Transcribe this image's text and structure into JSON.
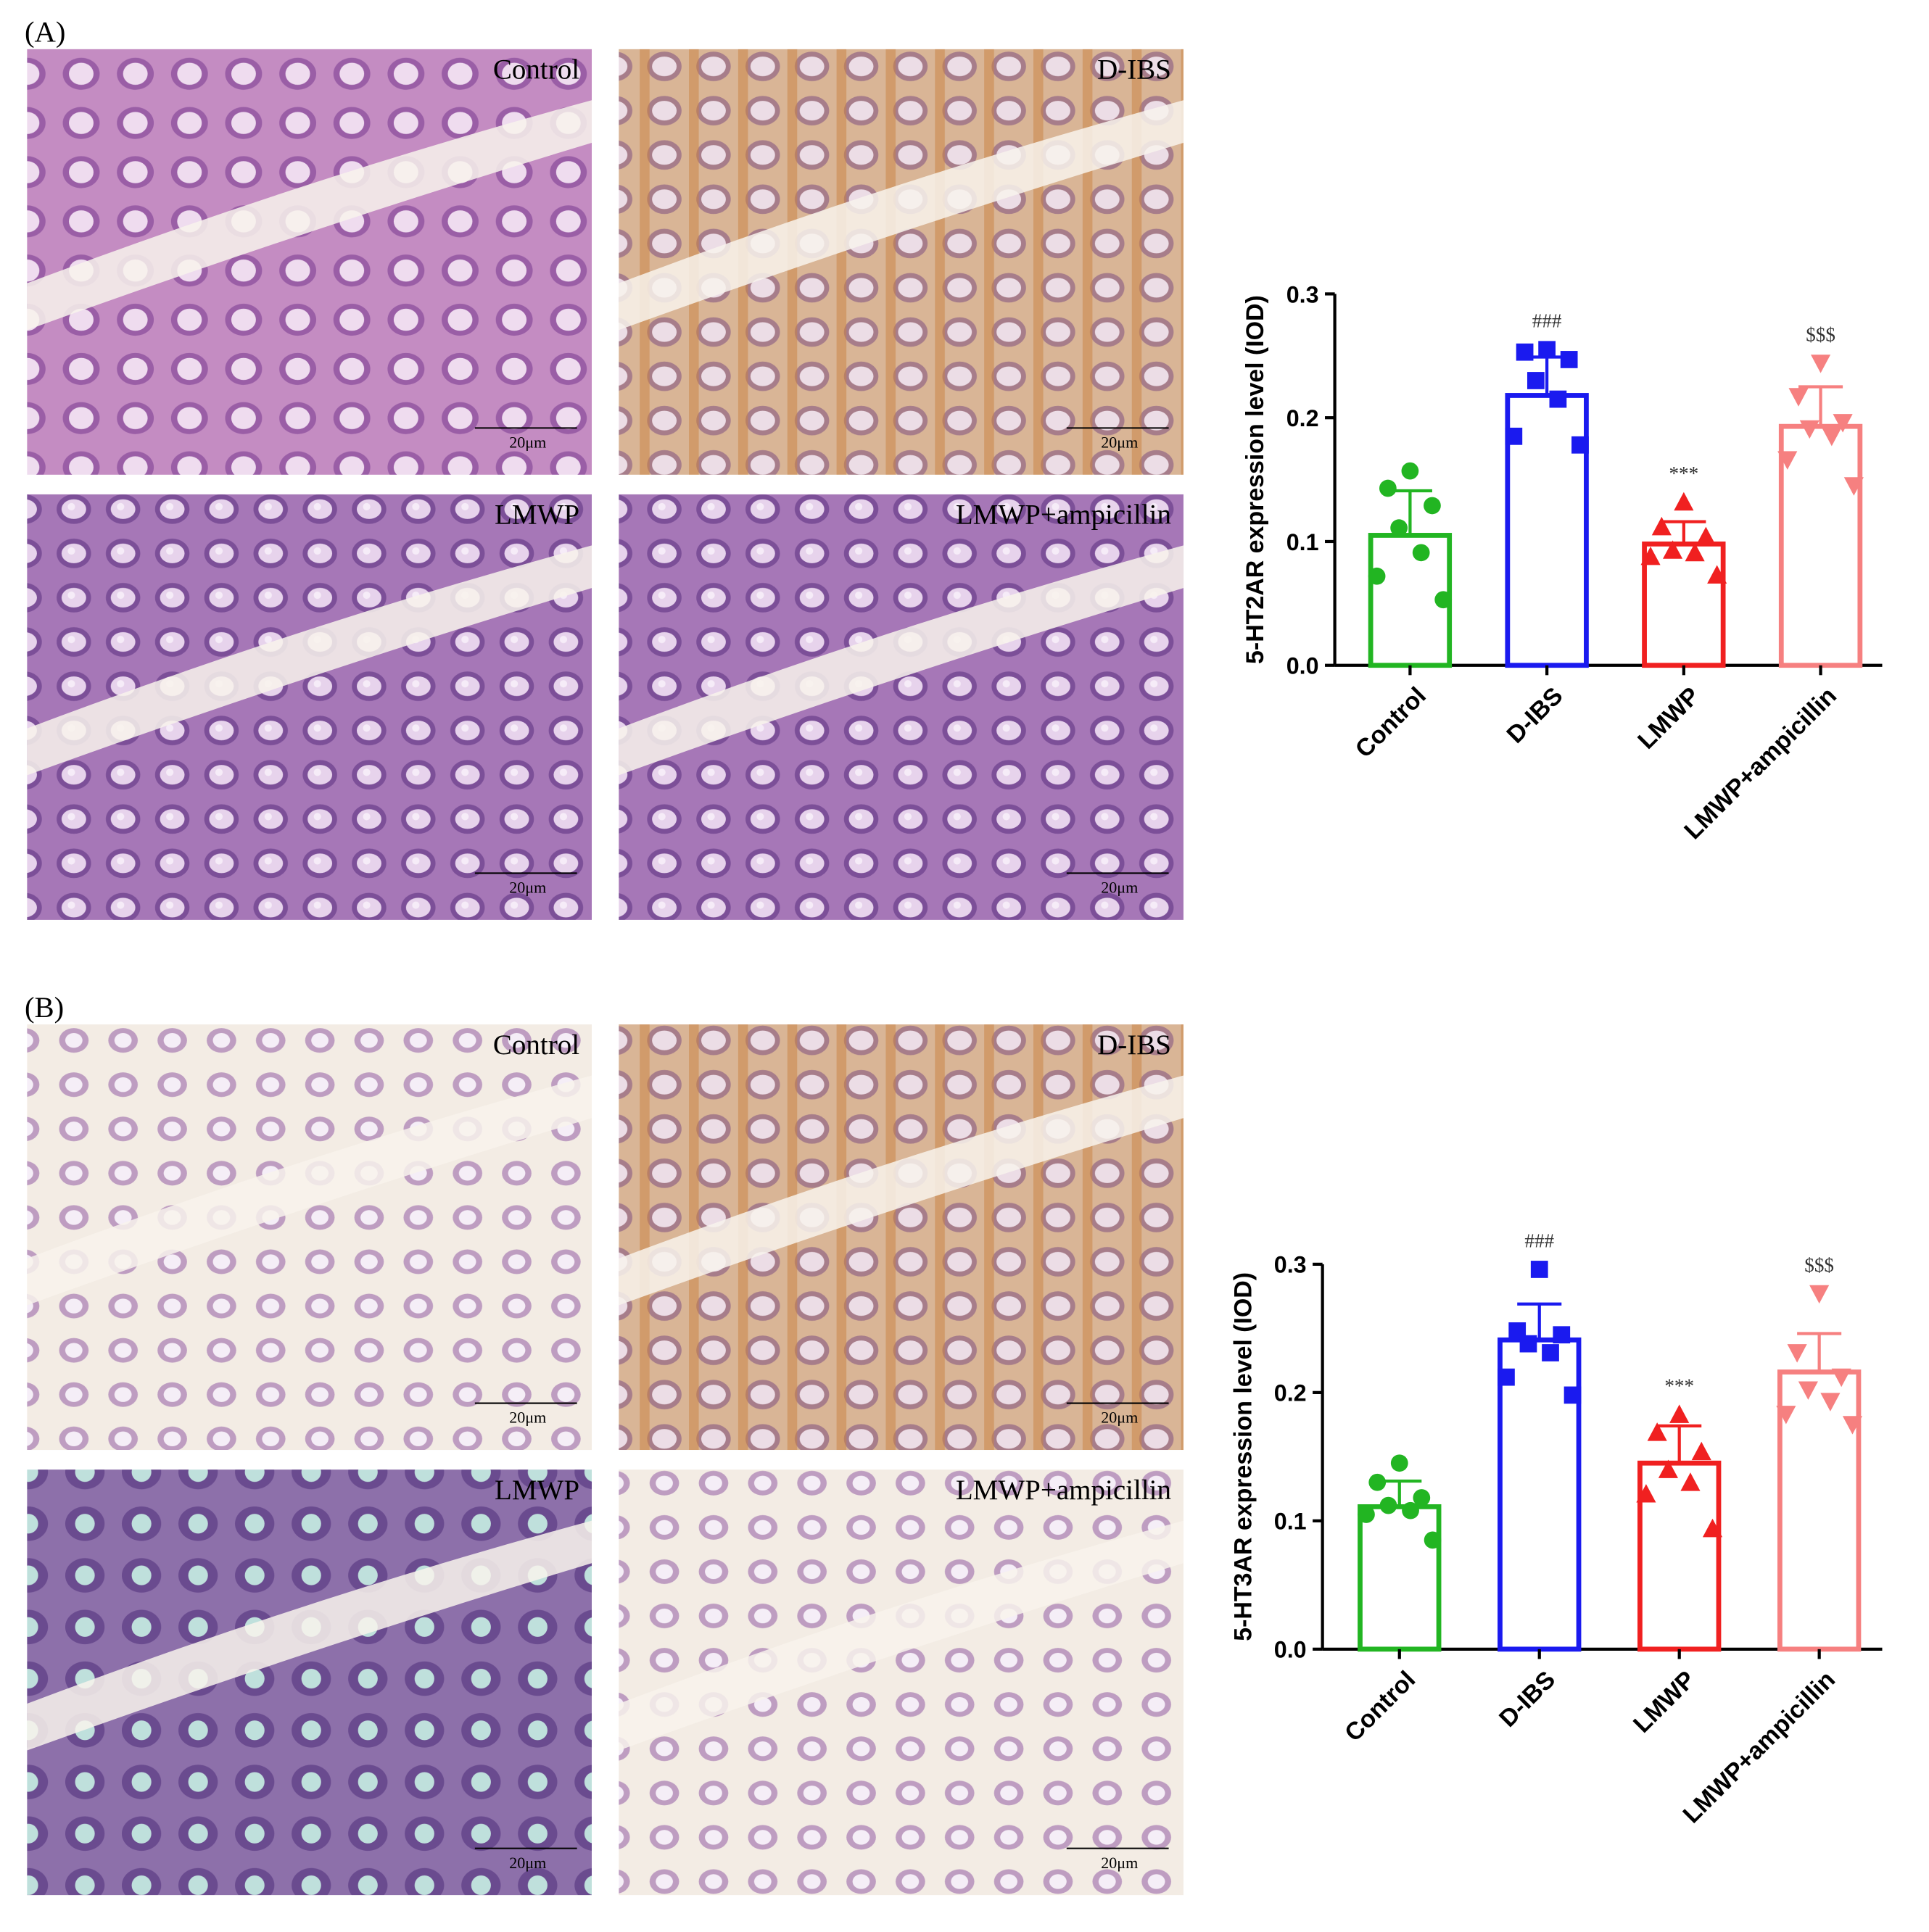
{
  "figure": {
    "panels": [
      {
        "label": "(A)",
        "images": [
          "Control",
          "D-IBS",
          "LMWP",
          "LMWP+ampicillin"
        ]
      },
      {
        "label": "(B)",
        "images": [
          "Control",
          "D-IBS",
          "LMWP",
          "LMWP+ampicillin"
        ]
      }
    ],
    "scale_bar": "20μm"
  },
  "chart_data": [
    {
      "type": "bar",
      "ylabel": "5-HT2AR expression level (IOD)",
      "categories": [
        "Control",
        "D-IBS",
        "LMWP",
        "LMWP+ampicillin"
      ],
      "values": [
        0.105,
        0.218,
        0.098,
        0.193
      ],
      "errors": [
        0.036,
        0.031,
        0.018,
        0.032
      ],
      "colors": [
        "#22b522",
        "#1a1aef",
        "#f02020",
        "#f68080"
      ],
      "markers": [
        "circle",
        "square",
        "triangle",
        "triangle-down"
      ],
      "points": [
        [
          0.157,
          0.143,
          0.129,
          0.111,
          0.091,
          0.072,
          0.053
        ],
        [
          0.255,
          0.253,
          0.247,
          0.23,
          0.215,
          0.185,
          0.178
        ],
        [
          0.132,
          0.112,
          0.104,
          0.093,
          0.091,
          0.088,
          0.073
        ],
        [
          0.244,
          0.217,
          0.196,
          0.191,
          0.185,
          0.166,
          0.145
        ]
      ],
      "annotations": [
        null,
        "###",
        "***",
        "$$$"
      ],
      "ylim": [
        0,
        0.3
      ],
      "yticks": [
        {
          "value": 0,
          "label": "0.0"
        },
        0.1,
        0.2,
        0.3
      ]
    },
    {
      "type": "bar",
      "ylabel": "5-HT3AR expression level (IOD)",
      "categories": [
        "Control",
        "D-IBS",
        "LMWP",
        "LMWP+ampicillin"
      ],
      "values": [
        0.111,
        0.241,
        0.145,
        0.216
      ],
      "errors": [
        0.02,
        0.028,
        0.029,
        0.03
      ],
      "colors": [
        "#22b522",
        "#1a1aef",
        "#f02020",
        "#f68080"
      ],
      "markers": [
        "circle",
        "square",
        "triangle",
        "triangle-down"
      ],
      "points": [
        [
          0.145,
          0.13,
          0.118,
          0.112,
          0.108,
          0.105,
          0.085
        ],
        [
          0.296,
          0.248,
          0.245,
          0.238,
          0.231,
          0.212,
          0.198
        ],
        [
          0.183,
          0.169,
          0.154,
          0.14,
          0.13,
          0.121,
          0.094
        ],
        [
          0.277,
          0.231,
          0.212,
          0.202,
          0.193,
          0.183,
          0.175
        ]
      ],
      "annotations": [
        null,
        "###",
        "***",
        "$$$"
      ],
      "ylim": [
        0,
        0.3
      ],
      "yticks": [
        {
          "value": 0,
          "label": "0.0"
        },
        0.1,
        0.2,
        0.3
      ]
    }
  ]
}
